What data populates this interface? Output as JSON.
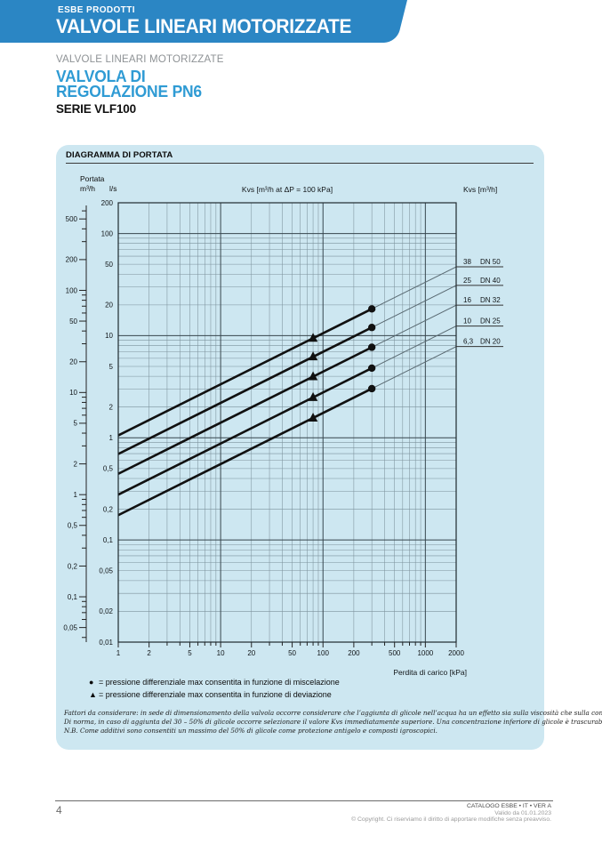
{
  "header": {
    "kicker": "ESBE PRODOTTI",
    "title": "VALVOLE LINEARI MOTORIZZATE",
    "breadcrumb": "VALVOLE LINEARI MOTORIZZATE",
    "product_title_line1": "VALVOLA DI",
    "product_title_line2": "REGOLAZIONE PN6",
    "series_name": "SERIE VLF100"
  },
  "panel": {
    "title": "DIAGRAMMA DI PORTATA"
  },
  "chart_data": {
    "type": "line",
    "title": "Kvs [m³/h at ΔP = 100 kPa]",
    "x_axis": {
      "label": "Perdita di carico [kPa]",
      "scale": "log",
      "min": 1,
      "max": 2000,
      "tick_labels": [
        "1",
        "2",
        "5",
        "10",
        "20",
        "50",
        "100",
        "200",
        "500",
        "1000",
        "2000"
      ]
    },
    "y_axis": {
      "label": "Portata",
      "units": [
        "m³/h",
        "l/s"
      ],
      "scale": "log",
      "ls": {
        "min": 0.01,
        "max": 200,
        "tick_labels": [
          "200",
          "100",
          "50",
          "20",
          "10",
          "5",
          "2",
          "1",
          "0,5",
          "0,2",
          "0,1",
          "0,05",
          "0,02",
          "0,01"
        ]
      },
      "m3h": {
        "tick_labels": [
          "500",
          "200",
          "100",
          "50",
          "20",
          "10",
          "5",
          "2",
          "1",
          "0,5",
          "0,2",
          "0,1",
          "0,05"
        ]
      }
    },
    "right_axis": {
      "label": "Kvs  [m³/h]"
    },
    "series": [
      {
        "kvs": 38,
        "kvs_label": "38",
        "dn_label": "DN 50"
      },
      {
        "kvs": 25,
        "kvs_label": "25",
        "dn_label": "DN 40"
      },
      {
        "kvs": 16,
        "kvs_label": "16",
        "dn_label": "DN 32"
      },
      {
        "kvs": 10,
        "kvs_label": "10",
        "dn_label": "DN 25"
      },
      {
        "kvs": 6.3,
        "kvs_label": "6,3",
        "dn_label": "DN 20"
      }
    ],
    "markers": {
      "dot_dp_kpa": 300,
      "triangle_dp_kpa": 80
    }
  },
  "legend": {
    "items": [
      {
        "symbol": "●",
        "text": "= pressione differenziale max consentita in funzione di miscelazione"
      },
      {
        "symbol": "▲",
        "text": "= pressione differenziale max consentita in funzione di deviazione"
      }
    ]
  },
  "footnote": {
    "lines": [
      "Fattori da considerare: in sede di dimensionamento della valvola occorre considerare che l’aggiunta di glicole nell’acqua ha un effetto sia sulla viscosità che sulla conduzione termica.",
      "Di norma, in caso di aggiunta del 30 – 50% di glicole occorre selezionare il valore Kvs immediatamente superiore. Una concentrazione inferiore di glicole è trascurabile.",
      "N.B. Come additivi sono consentiti un massimo del 50% di glicole come protezione antigelo e composti igroscopici."
    ]
  },
  "footer": {
    "page_number": "4",
    "catalog_line": "CATALOGO ESBE • IT • VER A",
    "valid_line": "Valido da 01.01.2023",
    "copyright_line": "© Copyright. Ci riserviamo il diritto di apportare modifiche senza preavviso."
  },
  "colors": {
    "band_blue": "#2b86c4",
    "title_blue": "#2f9bd4",
    "panel_bg": "#cde7f1",
    "grid_minor": "#7d929c",
    "grid_major": "#37464e",
    "series_black": "#111111",
    "series_thin": "#5a6a72"
  }
}
